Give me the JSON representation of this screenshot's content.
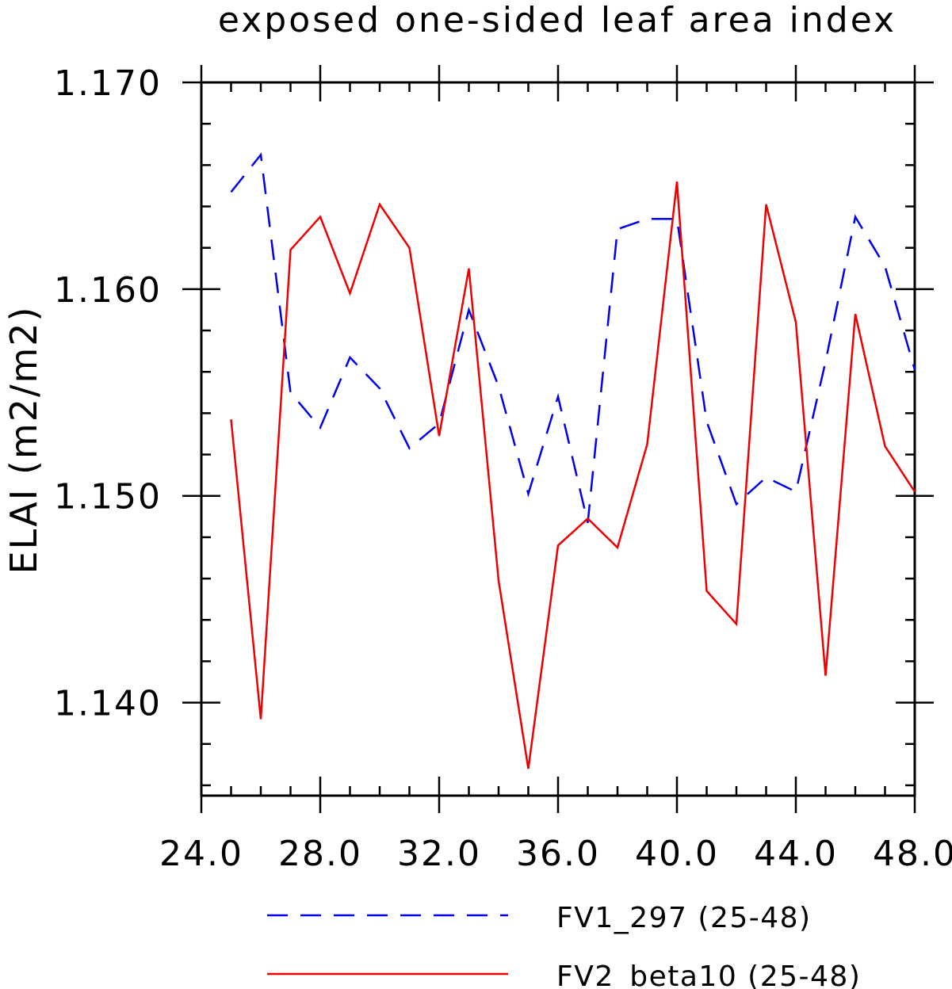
{
  "chart_data": {
    "type": "line",
    "title": "exposed one-sided leaf area index",
    "ylabel": "ELAI  (m2/m2)",
    "xlabel": "",
    "xlim": [
      24,
      48
    ],
    "ylim": [
      1.1355,
      1.17
    ],
    "x_ticks": [
      24,
      28,
      32,
      36,
      40,
      44,
      48
    ],
    "x_tick_labels": [
      "24.0",
      "28.0",
      "32.0",
      "36.0",
      "40.0",
      "44.0",
      "48.0"
    ],
    "y_ticks": [
      1.14,
      1.15,
      1.16,
      1.17
    ],
    "y_tick_labels": [
      "1.140",
      "1.150",
      "1.160",
      "1.170"
    ],
    "x": [
      25,
      26,
      27,
      28,
      29,
      30,
      31,
      32,
      33,
      34,
      35,
      36,
      37,
      38,
      39,
      40,
      41,
      42,
      43,
      44,
      45,
      46,
      47,
      48
    ],
    "series": [
      {
        "name": "FV1_297 (25-48)",
        "color": "#0000ee",
        "style": "dashed",
        "values": [
          1.1647,
          1.1665,
          1.155,
          1.1533,
          1.1567,
          1.1552,
          1.1523,
          1.1535,
          1.159,
          1.1553,
          1.1501,
          1.1548,
          1.1487,
          1.1629,
          1.1634,
          1.1634,
          1.1536,
          1.1496,
          1.1509,
          1.1502,
          1.1565,
          1.1635,
          1.1611,
          1.1561
        ]
      },
      {
        "name": "FV2_beta10 (25-48)",
        "color": "#ee0000",
        "style": "solid",
        "values": [
          1.1537,
          1.1392,
          1.1619,
          1.1635,
          1.1598,
          1.1641,
          1.162,
          1.1529,
          1.161,
          1.1459,
          1.1368,
          1.1476,
          1.1489,
          1.1475,
          1.1525,
          1.1652,
          1.1454,
          1.1438,
          1.1641,
          1.1584,
          1.1413,
          1.1588,
          1.1524,
          1.1502
        ]
      }
    ],
    "grid": false,
    "legend_position": "bottom"
  }
}
